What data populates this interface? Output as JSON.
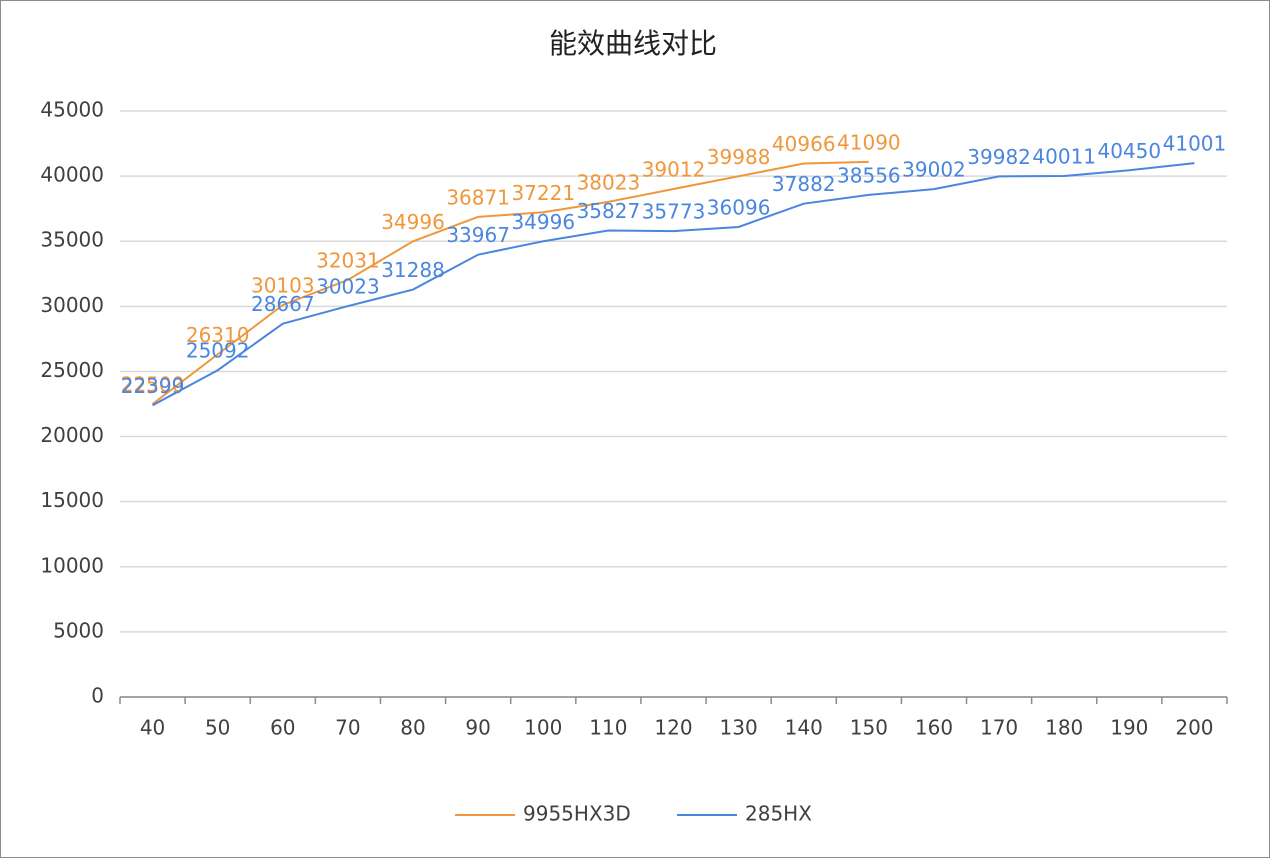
{
  "chart_data": {
    "type": "line",
    "title": "能效曲线对比",
    "categories": [
      40,
      50,
      60,
      70,
      80,
      90,
      100,
      110,
      120,
      130,
      140,
      150,
      160,
      170,
      180,
      190,
      200
    ],
    "series": [
      {
        "name": "9955HX3D",
        "color": "#f0973b",
        "values": [
          22500,
          26310,
          30103,
          32031,
          34996,
          36871,
          37221,
          38023,
          39012,
          39988,
          40966,
          41090,
          null,
          null,
          null,
          null,
          null
        ]
      },
      {
        "name": "285HX",
        "color": "#4a86e0",
        "values": [
          22399,
          25092,
          28667,
          30023,
          31288,
          33967,
          34996,
          35827,
          35773,
          36096,
          37882,
          38556,
          39002,
          39982,
          40011,
          40450,
          41001
        ]
      }
    ],
    "ylim": [
      0,
      45000
    ],
    "yticks": [
      0,
      5000,
      10000,
      15000,
      20000,
      25000,
      30000,
      35000,
      40000,
      45000
    ],
    "grid": true,
    "legend": "bottom"
  }
}
